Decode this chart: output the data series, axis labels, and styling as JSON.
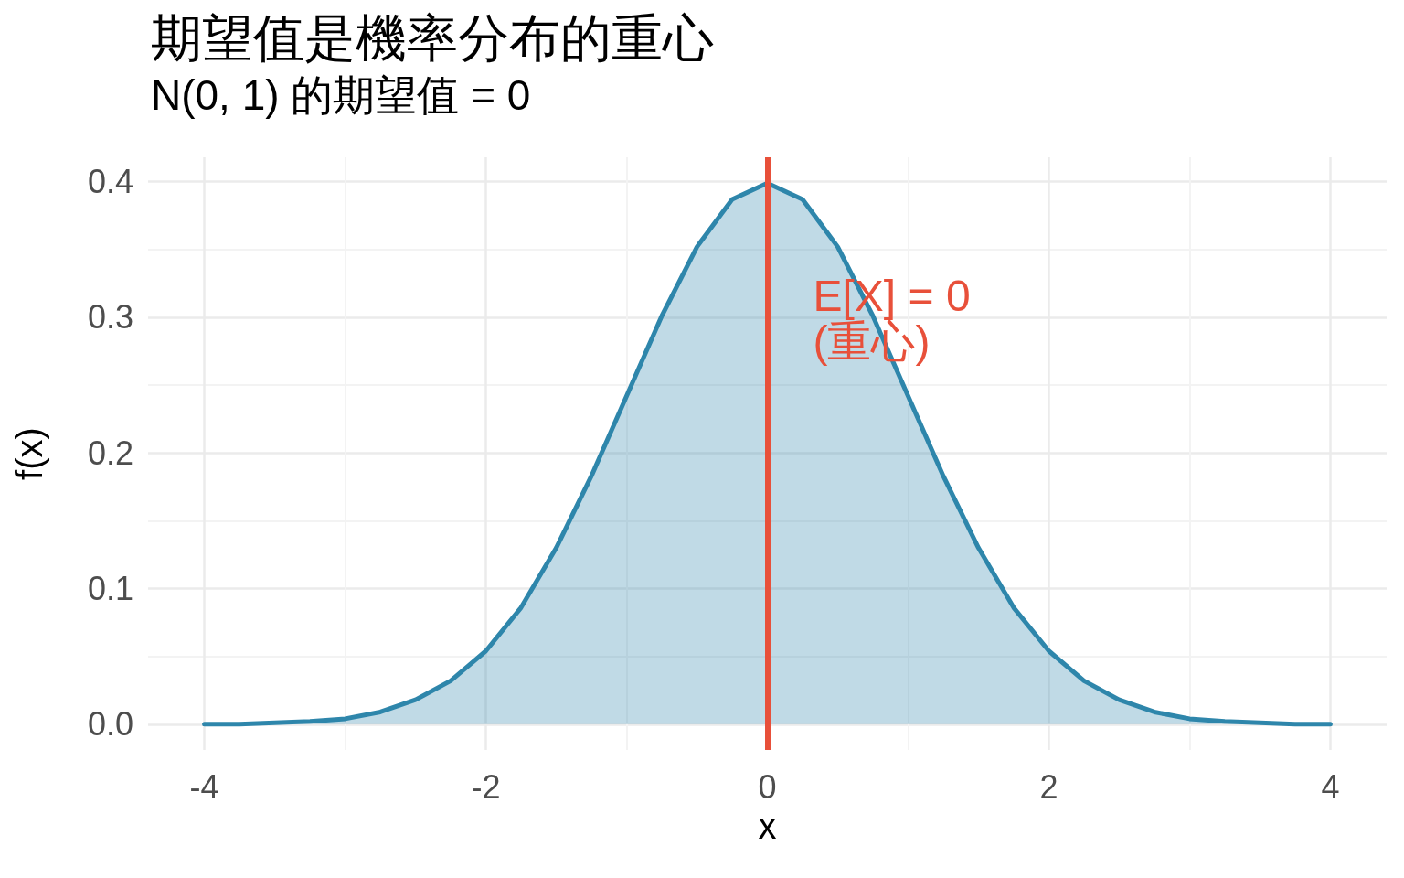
{
  "chart_data": {
    "type": "area",
    "title": "期望值是機率分布的重心",
    "subtitle": "N(0, 1) 的期望值 = 0",
    "xlabel": "x",
    "ylabel": "f(x)",
    "x": [
      -4,
      -3.75,
      -3.5,
      -3.25,
      -3,
      -2.75,
      -2.5,
      -2.25,
      -2,
      -1.75,
      -1.5,
      -1.25,
      -1,
      -0.75,
      -0.5,
      -0.25,
      0,
      0.25,
      0.5,
      0.75,
      1,
      1.25,
      1.5,
      1.75,
      2,
      2.25,
      2.5,
      2.75,
      3,
      3.25,
      3.5,
      3.75,
      4
    ],
    "series": [
      {
        "color": "#2e86ab",
        "values": [
          0.0,
          0.0,
          0.001,
          0.002,
          0.004,
          0.009,
          0.018,
          0.032,
          0.054,
          0.086,
          0.13,
          0.183,
          0.242,
          0.301,
          0.352,
          0.387,
          0.399,
          0.387,
          0.352,
          0.301,
          0.242,
          0.183,
          0.13,
          0.086,
          0.054,
          0.032,
          0.018,
          0.009,
          0.004,
          0.002,
          0.001,
          0.0,
          0.0
        ]
      }
    ],
    "xlim": [
      -4.4,
      4.4
    ],
    "xticks": [
      -4,
      -2,
      0,
      2,
      4
    ],
    "ylim": [
      -0.019,
      0.418
    ],
    "yticks": [
      {
        "value": 0,
        "label": "0.0"
      },
      0.1,
      0.2,
      0.3,
      0.4
    ],
    "ref_lines": [
      {
        "axis": "x",
        "value": 0,
        "color": "#e8503a",
        "line_style": "solid"
      }
    ],
    "annotations": [
      "E[X] = 0\n(重心)"
    ],
    "grid": true,
    "marker": "none",
    "line_style": "solid"
  }
}
